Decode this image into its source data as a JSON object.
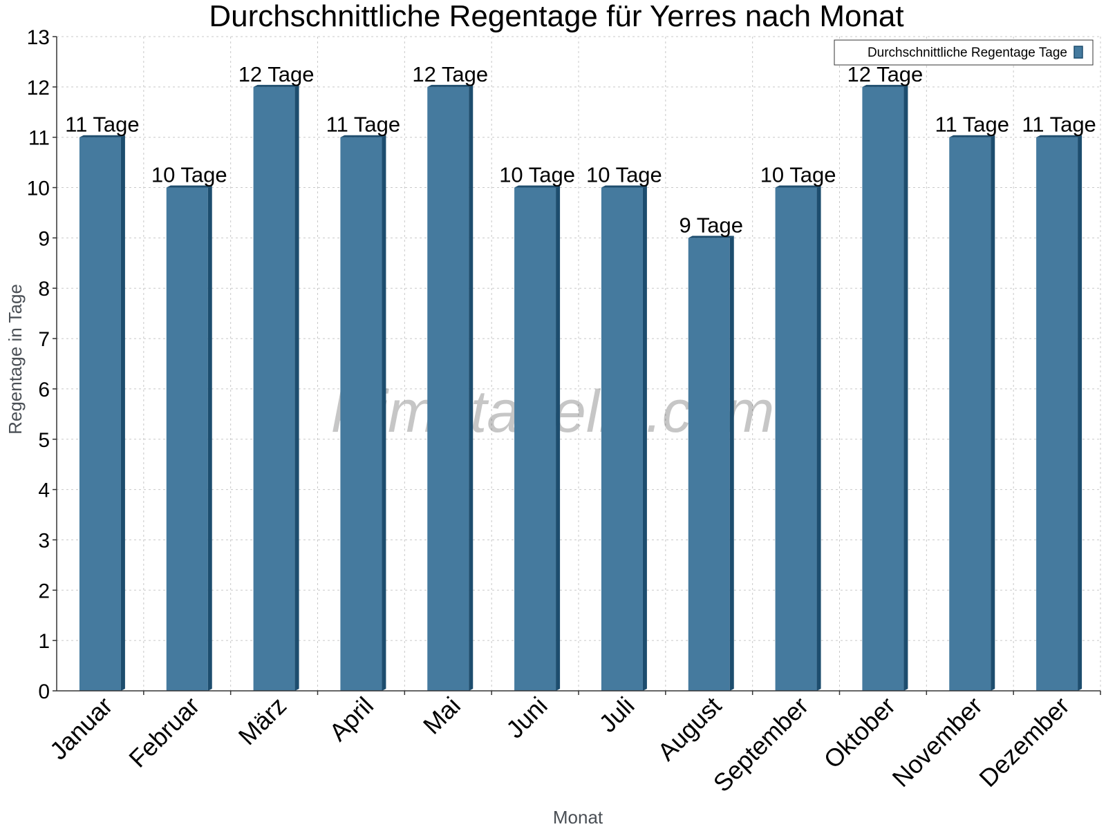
{
  "chart_data": {
    "type": "bar",
    "title": "Durchschnittliche Regentage für Yerres nach Monat",
    "xlabel": "Monat",
    "ylabel": "Regentage in Tage",
    "ylim": [
      0,
      13
    ],
    "yticks": [
      0,
      1,
      2,
      3,
      4,
      5,
      6,
      7,
      8,
      9,
      10,
      11,
      12,
      13
    ],
    "grid": true,
    "legend_position": "top-right",
    "categories": [
      "Januar",
      "Februar",
      "März",
      "April",
      "Mai",
      "Juni",
      "Juli",
      "August",
      "September",
      "Oktober",
      "November",
      "Dezember"
    ],
    "series": [
      {
        "name": "Durchschnittliche Regentage Tage",
        "values": [
          11,
          10,
          12,
          11,
          12,
          10,
          10,
          9,
          10,
          12,
          11,
          11
        ],
        "labels": [
          "11 Tage",
          "10 Tage",
          "12 Tage",
          "11 Tage",
          "12 Tage",
          "10 Tage",
          "10 Tage",
          "9 Tage",
          "10 Tage",
          "12 Tage",
          "11 Tage",
          "11 Tage"
        ],
        "color": "#457a9e",
        "side_color": "#1d4d6e"
      }
    ]
  },
  "watermark": "klimatabelle.com"
}
